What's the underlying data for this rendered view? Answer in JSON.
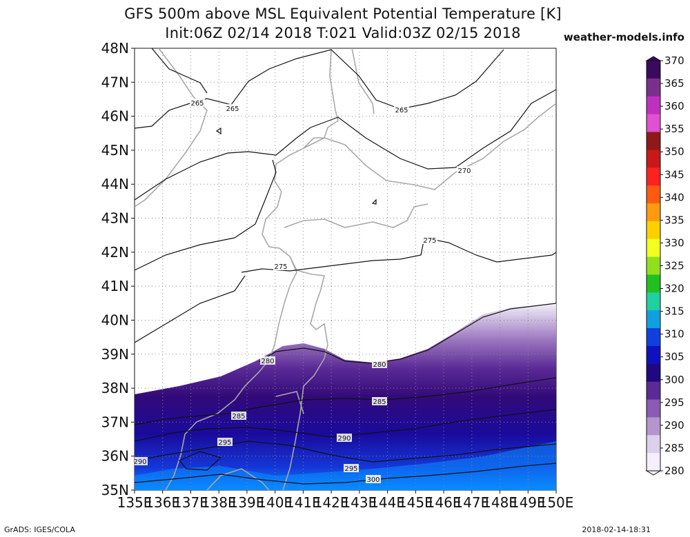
{
  "header": {
    "title_line1": "GFS 500m above MSL Equivalent Potential Temperature [K]",
    "title_line2": "Init:06Z 02/14 2018 T:021 Valid:03Z 02/15 2018",
    "site": "weather-models.info"
  },
  "footer": {
    "credit": "GrADS: IGES/COLA",
    "timestamp": "2018-02-14-18:31"
  },
  "map": {
    "lat_labels": [
      "48N",
      "47N",
      "46N",
      "45N",
      "44N",
      "43N",
      "42N",
      "41N",
      "40N",
      "39N",
      "38N",
      "37N",
      "36N",
      "35N"
    ],
    "lon_labels": [
      "135E",
      "136E",
      "137E",
      "138E",
      "139E",
      "140E",
      "141E",
      "142E",
      "143E",
      "144E",
      "145E",
      "146E",
      "147E",
      "148E",
      "149E",
      "150E"
    ],
    "contour_labels": [
      "265",
      "265",
      "265",
      "270",
      "275",
      "275",
      "280",
      "280",
      "285",
      "285",
      "290",
      "290",
      "295",
      "295",
      "300"
    ]
  },
  "colorbar": {
    "levels": [
      "370",
      "365",
      "360",
      "355",
      "350",
      "345",
      "340",
      "335",
      "330",
      "325",
      "320",
      "315",
      "310",
      "305",
      "300",
      "295",
      "290",
      "285",
      "280"
    ],
    "colors": [
      "#3a0a5e",
      "#7a2f8e",
      "#c030c0",
      "#e050d0",
      "#901818",
      "#c81818",
      "#ff2020",
      "#ff5a10",
      "#ff9a10",
      "#ffd000",
      "#f0ff20",
      "#90e020",
      "#20c020",
      "#20d0a0",
      "#10a0e0",
      "#1040e0",
      "#1010c0",
      "#200880",
      "#5a2a96",
      "#8a5ab4",
      "#b496cc",
      "#ddd0ea",
      "#f4effa"
    ]
  }
}
